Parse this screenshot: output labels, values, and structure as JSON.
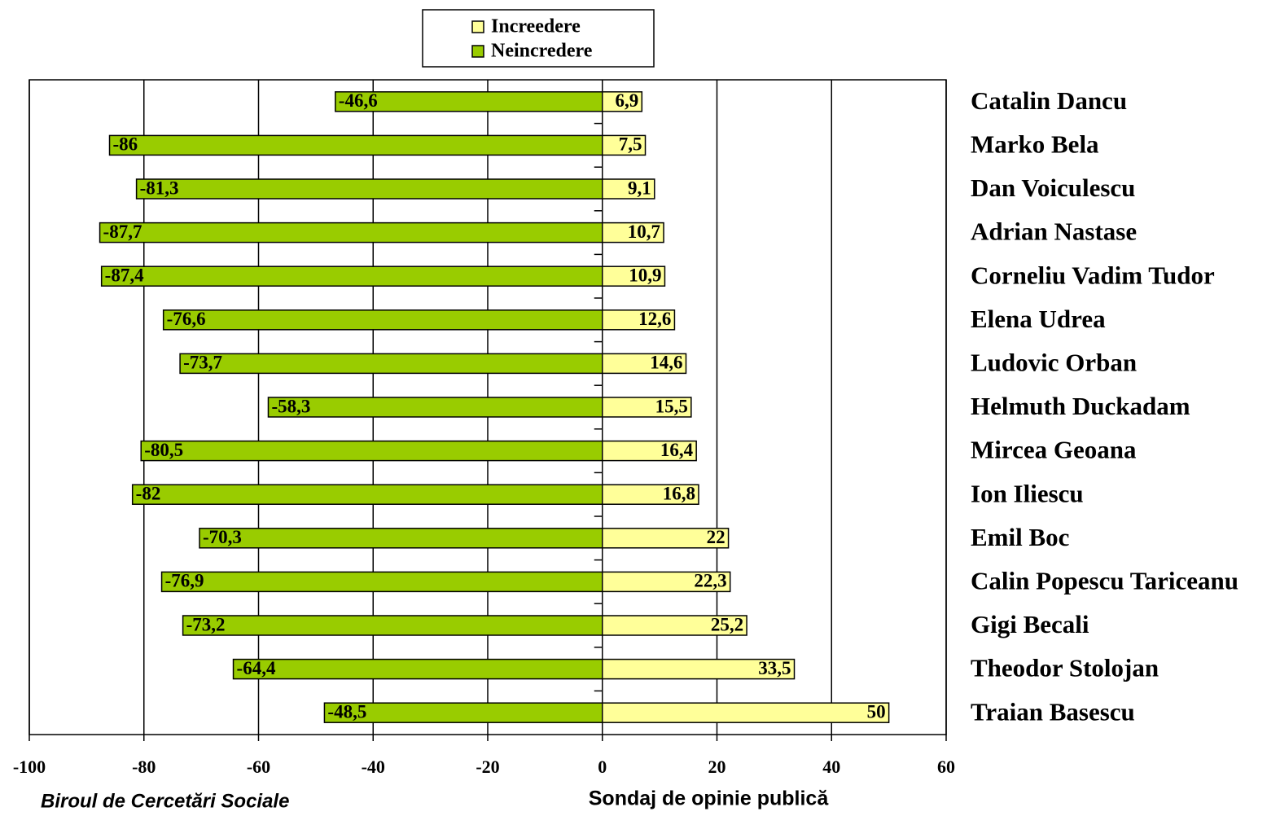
{
  "chart_data": {
    "type": "bar",
    "orientation": "horizontal",
    "stacked": "diverging",
    "categories": [
      "Catalin Dancu",
      "Marko Bela",
      "Dan Voiculescu",
      "Adrian Nastase",
      "Corneliu Vadim Tudor",
      "Elena Udrea",
      "Ludovic Orban",
      "Helmuth Duckadam",
      "Mircea Geoana",
      "Ion Iliescu",
      "Emil Boc",
      "Calin Popescu Tariceanu",
      "Gigi Becali",
      "Theodor Stolojan",
      "Traian Basescu"
    ],
    "series": [
      {
        "name": "Increedere",
        "color": "#ffff99",
        "values": [
          6.9,
          7.5,
          9.1,
          10.7,
          10.9,
          12.6,
          14.6,
          15.5,
          16.4,
          16.8,
          22,
          22.3,
          25.2,
          33.5,
          50
        ],
        "value_labels": [
          "6,9",
          "7,5",
          "9,1",
          "10,7",
          "10,9",
          "12,6",
          "14,6",
          "15,5",
          "16,4",
          "16,8",
          "22",
          "22,3",
          "25,2",
          "33,5",
          "50"
        ]
      },
      {
        "name": "Neincredere",
        "color": "#99cc00",
        "values": [
          -46.6,
          -86,
          -81.3,
          -87.7,
          -87.4,
          -76.6,
          -73.7,
          -58.3,
          -80.5,
          -82,
          -70.3,
          -76.9,
          -73.2,
          -64.4,
          -48.5
        ],
        "value_labels": [
          "-46,6",
          "-86",
          "-81,3",
          "-87,7",
          "-87,4",
          "-76,6",
          "-73,7",
          "-58,3",
          "-80,5",
          "-82",
          "-70,3",
          "-76,9",
          "-73,2",
          "-64,4",
          "-48,5"
        ]
      }
    ],
    "xlim": [
      -100,
      60
    ],
    "xticks": [
      -100,
      -80,
      -60,
      -40,
      -20,
      0,
      20,
      40,
      60
    ],
    "grid": true,
    "legend": "top",
    "annotations": [
      "Biroul de Cercetări Sociale",
      "Sondaj de opinie publică"
    ]
  }
}
